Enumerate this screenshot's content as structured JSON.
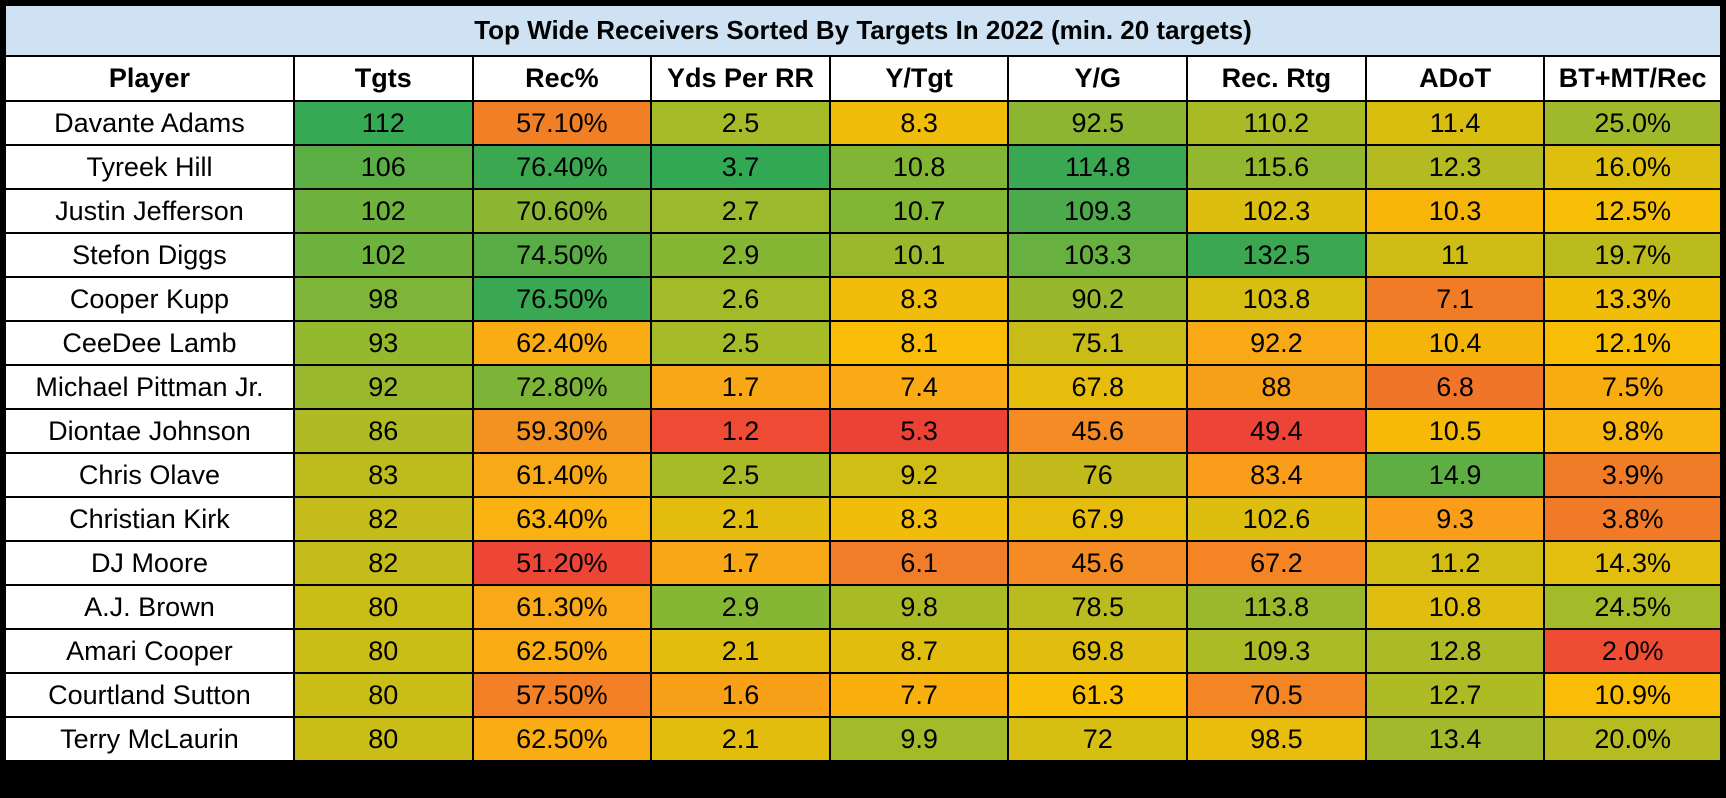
{
  "chart_data": {
    "type": "table",
    "title": "Top Wide Receivers Sorted By Targets In 2022 (min. 20 targets)",
    "columns": [
      "Player",
      "Tgts",
      "Rec%",
      "Yds Per RR",
      "Y/Tgt",
      "Y/G",
      "Rec. Rtg",
      "ADoT",
      "BT+MT/Rec"
    ],
    "rows": [
      {
        "cells": [
          "Davante Adams",
          "112",
          "57.10%",
          "2.5",
          "8.3",
          "92.5",
          "110.2",
          "11.4",
          "25.0%"
        ],
        "colors": [
          "#ffffff",
          "#35a954",
          "#f17f26",
          "#a6bb28",
          "#f0bd0a",
          "#8db531",
          "#a8bb27",
          "#d9be10",
          "#9fb92b"
        ]
      },
      {
        "cells": [
          "Tyreek Hill",
          "106",
          "76.40%",
          "3.7",
          "10.8",
          "114.8",
          "115.6",
          "12.3",
          "16.0%"
        ],
        "colors": [
          "#ffffff",
          "#5aae44",
          "#3ba851",
          "#33a854",
          "#80b536",
          "#3aa852",
          "#93b72e",
          "#b3ba22",
          "#ddbf0f"
        ]
      },
      {
        "cells": [
          "Justin Jefferson",
          "102",
          "70.60%",
          "2.7",
          "10.7",
          "109.3",
          "102.3",
          "10.3",
          "12.5%"
        ],
        "colors": [
          "#ffffff",
          "#6fb23d",
          "#8cb532",
          "#9ab92c",
          "#83b534",
          "#4daa4a",
          "#dcbe10",
          "#f6b508",
          "#f6bf05"
        ]
      },
      {
        "cells": [
          "Stefon Diggs",
          "102",
          "74.50%",
          "2.9",
          "10.1",
          "103.3",
          "132.5",
          "11",
          "19.7%"
        ],
        "colors": [
          "#ffffff",
          "#6db33d",
          "#58ae45",
          "#85b634",
          "#99b82d",
          "#68b03f",
          "#3ba851",
          "#cfbd15",
          "#bcbb1e"
        ]
      },
      {
        "cells": [
          "Cooper Kupp",
          "98",
          "76.50%",
          "2.6",
          "8.3",
          "90.2",
          "103.8",
          "7.1",
          "13.3%"
        ],
        "colors": [
          "#ffffff",
          "#7eb437",
          "#3aa852",
          "#a3ba29",
          "#f0bd0a",
          "#97b82e",
          "#d6be12",
          "#f17c28",
          "#f0be08"
        ]
      },
      {
        "cells": [
          "CeeDee Lamb",
          "93",
          "62.40%",
          "2.5",
          "8.1",
          "75.1",
          "92.2",
          "10.4",
          "12.1%"
        ],
        "colors": [
          "#ffffff",
          "#94b82e",
          "#f9ac13",
          "#a6bb28",
          "#f9bc07",
          "#c8bc19",
          "#f9a916",
          "#f4b40a",
          "#f8be05"
        ]
      },
      {
        "cells": [
          "Michael Pittman Jr.",
          "92",
          "72.80%",
          "1.7",
          "7.4",
          "67.8",
          "88",
          "6.8",
          "7.5%"
        ],
        "colors": [
          "#ffffff",
          "#99b82d",
          "#7cb438",
          "#f8a817",
          "#f9aa14",
          "#e6bd0c",
          "#f6a018",
          "#f07528",
          "#f9ac12"
        ]
      },
      {
        "cells": [
          "Diontae Johnson",
          "86",
          "59.30%",
          "1.2",
          "5.3",
          "45.6",
          "49.4",
          "10.5",
          "9.8%"
        ],
        "colors": [
          "#ffffff",
          "#afba24",
          "#f39121",
          "#ef4a34",
          "#ec4236",
          "#f48b24",
          "#ec4537",
          "#f6b907",
          "#f9b50d"
        ]
      },
      {
        "cells": [
          "Chris Olave",
          "83",
          "61.40%",
          "2.5",
          "9.2",
          "76",
          "83.4",
          "14.9",
          "3.9%"
        ],
        "colors": [
          "#ffffff",
          "#bebc1d",
          "#f8a918",
          "#a6bb28",
          "#d1be15",
          "#c3bb1b",
          "#f99d1b",
          "#5eae43",
          "#f17c28"
        ]
      },
      {
        "cells": [
          "Christian Kirk",
          "82",
          "63.40%",
          "2.1",
          "8.3",
          "67.9",
          "102.6",
          "9.3",
          "3.8%"
        ],
        "colors": [
          "#ffffff",
          "#c3bc1b",
          "#fab212",
          "#e3bd0e",
          "#f0bd0a",
          "#e6bd0c",
          "#dcbe10",
          "#f99d1b",
          "#f17a28"
        ]
      },
      {
        "cells": [
          "DJ Moore",
          "82",
          "51.20%",
          "1.7",
          "6.1",
          "45.6",
          "67.2",
          "11.2",
          "14.3%"
        ],
        "colors": [
          "#ffffff",
          "#c3bc1b",
          "#ed4637",
          "#f8a817",
          "#f17c29",
          "#f48b24",
          "#f48424",
          "#d4bd13",
          "#e4be0e"
        ]
      },
      {
        "cells": [
          "A.J. Brown",
          "80",
          "61.30%",
          "2.9",
          "9.8",
          "78.5",
          "113.8",
          "10.8",
          "24.5%"
        ],
        "colors": [
          "#ffffff",
          "#cbbd17",
          "#f8a818",
          "#85b634",
          "#a9ba27",
          "#b9bb1f",
          "#99b82d",
          "#e0be0f",
          "#a3ba29"
        ]
      },
      {
        "cells": [
          "Amari Cooper",
          "80",
          "62.50%",
          "2.1",
          "8.7",
          "69.8",
          "109.3",
          "12.8",
          "2.0%"
        ],
        "colors": [
          "#ffffff",
          "#cbbd17",
          "#f9ac13",
          "#e3bd0e",
          "#e1bd0e",
          "#e0bd0e",
          "#aabb26",
          "#abba26",
          "#ef4d33"
        ]
      },
      {
        "cells": [
          "Courtland Sutton",
          "80",
          "57.50%",
          "1.6",
          "7.7",
          "61.3",
          "70.5",
          "12.7",
          "10.9%"
        ],
        "colors": [
          "#ffffff",
          "#cbbd17",
          "#f37f26",
          "#f8a018",
          "#f9b00f",
          "#f8bf06",
          "#f38524",
          "#aebb25",
          "#fabd07"
        ]
      },
      {
        "cells": [
          "Terry McLaurin",
          "80",
          "62.50%",
          "2.1",
          "9.9",
          "72",
          "98.5",
          "13.4",
          "20.0%"
        ],
        "colors": [
          "#ffffff",
          "#cbbd17",
          "#f9ac13",
          "#e3bd0e",
          "#a3ba29",
          "#d7be12",
          "#e8bd0c",
          "#a1b92b",
          "#b6bb21"
        ]
      }
    ]
  },
  "colors": {
    "title_background": "#cfe2f3",
    "header_background": "#ffffff",
    "border": "#000000"
  }
}
